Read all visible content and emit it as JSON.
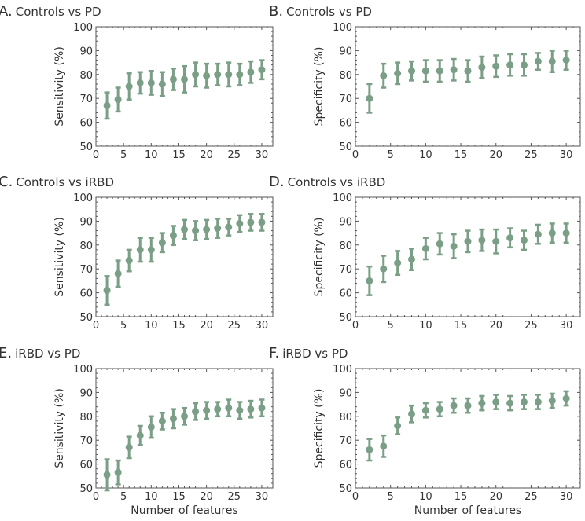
{
  "chart_data": [
    {
      "panel": "A.",
      "title": "Controls vs PD",
      "type": "scatter",
      "ylabel": "Sensitivity (%)",
      "xlabel": "",
      "ylim": [
        50,
        100
      ],
      "xlim": [
        0,
        32
      ],
      "x": [
        2,
        4,
        6,
        8,
        10,
        12,
        14,
        16,
        18,
        20,
        22,
        24,
        26,
        28,
        30
      ],
      "values": [
        67,
        69.5,
        75,
        76.5,
        76.5,
        76,
        78,
        78,
        80,
        79.5,
        80,
        80,
        80,
        81,
        82
      ],
      "errors": [
        5.5,
        5,
        5.5,
        4.5,
        5,
        5,
        4.5,
        5.5,
        5,
        5,
        4.5,
        5,
        4.5,
        4.5,
        4
      ]
    },
    {
      "panel": "B.",
      "title": "Controls vs PD",
      "type": "scatter",
      "ylabel": "Specificity (%)",
      "xlabel": "",
      "ylim": [
        50,
        100
      ],
      "xlim": [
        0,
        32
      ],
      "x": [
        2,
        4,
        6,
        8,
        10,
        12,
        14,
        16,
        18,
        20,
        22,
        24,
        26,
        28,
        30
      ],
      "values": [
        70,
        79.5,
        80.5,
        81.5,
        81.5,
        81.5,
        82,
        81.5,
        83,
        83.5,
        84,
        84,
        85.5,
        85.5,
        86
      ],
      "errors": [
        6,
        5,
        4.5,
        4,
        4.5,
        4.5,
        4.5,
        4.5,
        4.5,
        4.5,
        4.5,
        4.5,
        3.5,
        4.5,
        4
      ]
    },
    {
      "panel": "C.",
      "title": "Controls vs iRBD",
      "type": "scatter",
      "ylabel": "Sensitivity (%)",
      "xlabel": "",
      "ylim": [
        50,
        100
      ],
      "xlim": [
        0,
        32
      ],
      "x": [
        2,
        4,
        6,
        8,
        10,
        12,
        14,
        16,
        18,
        20,
        22,
        24,
        26,
        28,
        30
      ],
      "values": [
        61,
        68,
        73.5,
        78,
        78,
        81,
        84,
        86.5,
        86,
        86.5,
        87,
        87.5,
        89,
        89.5,
        89.5
      ],
      "errors": [
        6,
        5.5,
        4.5,
        5,
        5,
        4,
        4,
        4,
        4,
        4,
        4,
        3.5,
        3.5,
        3.5,
        3.5
      ]
    },
    {
      "panel": "D.",
      "title": "Controls vs iRBD",
      "type": "scatter",
      "ylabel": "Specificity (%)",
      "xlabel": "",
      "ylim": [
        50,
        100
      ],
      "xlim": [
        0,
        32
      ],
      "x": [
        2,
        4,
        6,
        8,
        10,
        12,
        14,
        16,
        18,
        20,
        22,
        24,
        26,
        28,
        30
      ],
      "values": [
        65,
        70,
        72.5,
        74,
        78.5,
        80.5,
        79.5,
        81.5,
        82,
        81.5,
        83,
        82,
        84.5,
        85,
        85
      ],
      "errors": [
        6,
        5.5,
        5,
        4.5,
        4.5,
        4.5,
        5,
        4.5,
        4.5,
        5,
        4,
        4,
        4,
        4,
        4
      ]
    },
    {
      "panel": "E.",
      "title": "iRBD vs PD",
      "type": "scatter",
      "ylabel": "Sensitivity (%)",
      "xlabel": "Number of features",
      "ylim": [
        50,
        100
      ],
      "xlim": [
        0,
        32
      ],
      "x": [
        2,
        4,
        6,
        8,
        10,
        12,
        14,
        16,
        18,
        20,
        22,
        24,
        26,
        28,
        30
      ],
      "values": [
        55.5,
        56.5,
        67,
        72,
        75.5,
        78,
        79,
        80,
        82,
        82.5,
        83,
        83.5,
        82.5,
        83,
        83.5
      ],
      "errors": [
        6.5,
        5,
        4.5,
        4,
        4.5,
        3.5,
        4,
        3.5,
        3.5,
        3.5,
        3,
        3.5,
        3.5,
        3.5,
        3.5
      ]
    },
    {
      "panel": "F.",
      "title": "iRBD vs PD",
      "type": "scatter",
      "ylabel": "Specificity (%)",
      "xlabel": "Number of features",
      "ylim": [
        50,
        100
      ],
      "xlim": [
        0,
        32
      ],
      "x": [
        2,
        4,
        6,
        8,
        10,
        12,
        14,
        16,
        18,
        20,
        22,
        24,
        26,
        28,
        30
      ],
      "values": [
        66,
        67.5,
        76,
        81,
        82.5,
        83,
        84.5,
        84.5,
        85.5,
        86,
        85.5,
        86,
        86,
        86.5,
        87.5
      ],
      "errors": [
        4.5,
        4.5,
        3.5,
        3.5,
        3,
        3,
        3,
        3,
        3,
        3,
        3,
        3,
        3,
        3,
        3
      ]
    }
  ],
  "yticks": [
    "50",
    "60",
    "70",
    "80",
    "90",
    "100"
  ],
  "xticks": [
    "0",
    "5",
    "10",
    "15",
    "20",
    "25",
    "30"
  ],
  "colors": {
    "marker": "#7b9f86",
    "axis": "#555555"
  }
}
